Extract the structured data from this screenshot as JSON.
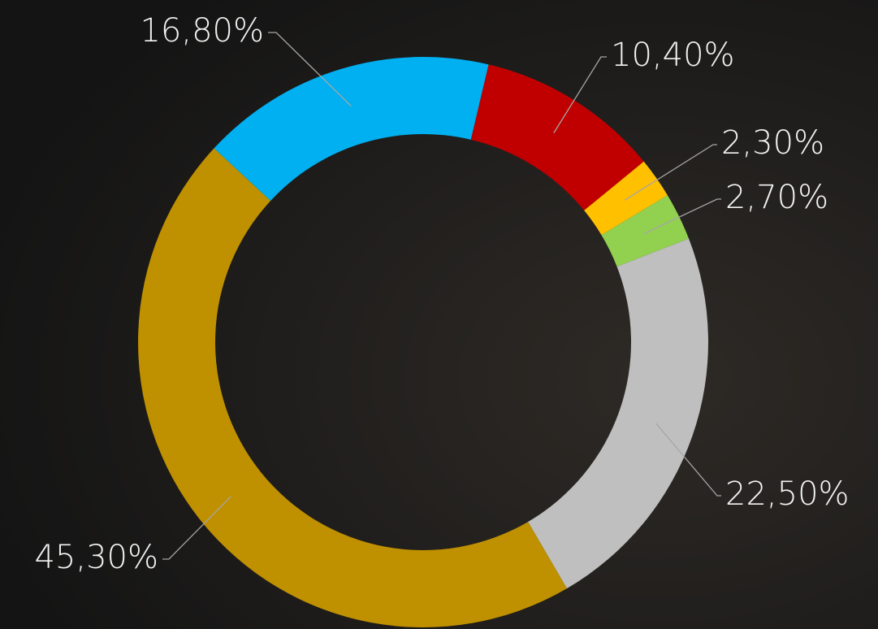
{
  "chart_data": {
    "type": "donut",
    "categories": [
      null,
      null,
      null,
      null,
      null,
      null
    ],
    "values": [
      16.8,
      10.4,
      2.3,
      2.7,
      22.5,
      45.3
    ],
    "value_labels": [
      "16,80%",
      "10,40%",
      "2,30%",
      "2,70%",
      "22,50%",
      "45,30%"
    ],
    "colors": [
      "#00b0f0",
      "#c00000",
      "#ffc000",
      "#92d050",
      "#bfbfbf",
      "#bf9000"
    ]
  }
}
